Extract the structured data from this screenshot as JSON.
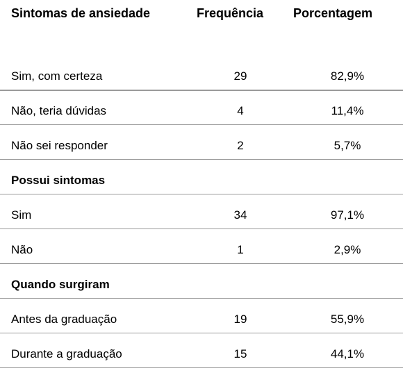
{
  "table": {
    "headers": {
      "label": "Sintomas de ansiedade",
      "frequency": "Frequência",
      "percentage": "Porcentagem"
    },
    "rows": [
      {
        "type": "data",
        "label": "Sim, com certeza",
        "frequency": "29",
        "percentage": "82,9%"
      },
      {
        "type": "data",
        "label": "Não, teria dúvidas",
        "frequency": "4",
        "percentage": "11,4%"
      },
      {
        "type": "data",
        "label": "Não sei responder",
        "frequency": "2",
        "percentage": "5,7%"
      },
      {
        "type": "section",
        "label": "Possui sintomas"
      },
      {
        "type": "data",
        "label": "Sim",
        "frequency": "34",
        "percentage": "97,1%"
      },
      {
        "type": "data",
        "label": "Não",
        "frequency": "1",
        "percentage": "2,9%"
      },
      {
        "type": "section",
        "label": "Quando surgiram"
      },
      {
        "type": "data",
        "label": "Antes da graduação",
        "frequency": "19",
        "percentage": "55,9%"
      },
      {
        "type": "data",
        "label": "Durante a graduação",
        "frequency": "15",
        "percentage": "44,1%"
      }
    ]
  }
}
